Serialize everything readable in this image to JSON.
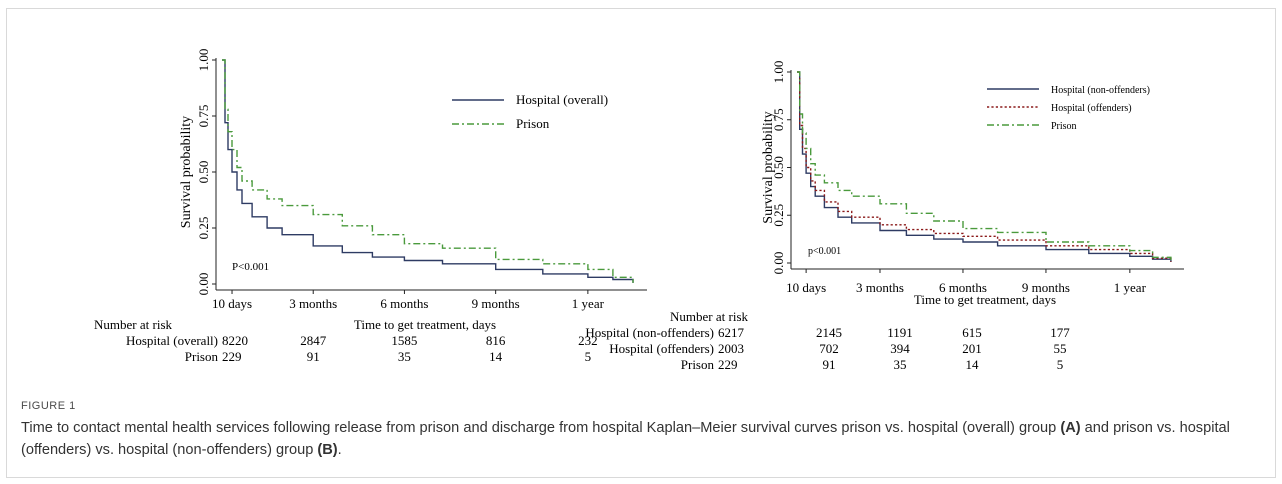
{
  "figure": {
    "label": "FIGURE 1",
    "caption_text": "Time to contact mental health services following release from prison and discharge from hospital Kaplan–Meier survival curves prison vs. hospital (overall) group ",
    "caption_a": "(A)",
    "caption_mid": " and prison vs. hospital (offenders) vs. hospital (non-offenders) group ",
    "caption_b": "(B)",
    "caption_end": "."
  },
  "chart_data": [
    {
      "type": "line",
      "panel": "A",
      "xlabel": "Time to get treatment, days",
      "ylabel": "Survival probability",
      "x_ticks": [
        "10 days",
        "3 months",
        "6 months",
        "9 months",
        "1 year"
      ],
      "x_tick_days": [
        10,
        91,
        182,
        273,
        365
      ],
      "xlim": [
        0,
        420
      ],
      "ylim": [
        0,
        1
      ],
      "y_ticks": [
        "0.00",
        "0.25",
        "0.50",
        "0.75",
        "1.00"
      ],
      "y_tick_values": [
        0,
        0.25,
        0.5,
        0.75,
        1
      ],
      "annotation": "P<0.001",
      "legend_position": "top-right",
      "series": [
        {
          "name": "Hospital (overall)",
          "color": "#2e3b63",
          "dash": "solid",
          "x": [
            0,
            3,
            6,
            10,
            15,
            20,
            30,
            45,
            60,
            91,
            120,
            150,
            182,
            220,
            273,
            320,
            365,
            390,
            410
          ],
          "y": [
            1.0,
            0.72,
            0.6,
            0.5,
            0.42,
            0.36,
            0.3,
            0.25,
            0.22,
            0.17,
            0.14,
            0.12,
            0.105,
            0.09,
            0.065,
            0.045,
            0.03,
            0.02,
            0.005
          ]
        },
        {
          "name": "Prison",
          "color": "#4a9a3c",
          "dash": "dashdot",
          "x": [
            0,
            3,
            6,
            10,
            15,
            20,
            30,
            45,
            60,
            91,
            120,
            150,
            182,
            220,
            273,
            320,
            365,
            390,
            410
          ],
          "y": [
            1.0,
            0.78,
            0.68,
            0.6,
            0.52,
            0.46,
            0.42,
            0.38,
            0.35,
            0.31,
            0.26,
            0.22,
            0.18,
            0.16,
            0.11,
            0.09,
            0.065,
            0.03,
            0.005
          ]
        }
      ],
      "risk_table": {
        "title": "Number at risk",
        "rows": [
          {
            "label": "Hospital (overall)",
            "values": [
              "8220",
              "2847",
              "1585",
              "816",
              "232"
            ]
          },
          {
            "label": "Prison",
            "values": [
              "229",
              "91",
              "35",
              "14",
              "5"
            ]
          }
        ]
      }
    },
    {
      "type": "line",
      "panel": "B",
      "xlabel": "Time to get treatment, days",
      "ylabel": "Survival probability",
      "x_ticks": [
        "10 days",
        "3 months",
        "6 months",
        "9 months",
        "1 year"
      ],
      "x_tick_days": [
        10,
        91,
        182,
        273,
        365
      ],
      "xlim": [
        0,
        420
      ],
      "ylim": [
        0,
        1
      ],
      "y_ticks": [
        "0.00",
        "0.25",
        "0.50",
        "0.75",
        "1.00"
      ],
      "y_tick_values": [
        0,
        0.25,
        0.5,
        0.75,
        1
      ],
      "annotation": "p<0.001",
      "legend_position": "top-right",
      "series": [
        {
          "name": "Hospital (non-offenders)",
          "color": "#2e3b63",
          "dash": "solid",
          "x": [
            0,
            3,
            6,
            10,
            15,
            20,
            30,
            45,
            60,
            91,
            120,
            150,
            182,
            220,
            273,
            320,
            365,
            390,
            410
          ],
          "y": [
            1.0,
            0.7,
            0.57,
            0.47,
            0.4,
            0.35,
            0.29,
            0.24,
            0.21,
            0.17,
            0.145,
            0.125,
            0.11,
            0.09,
            0.07,
            0.05,
            0.035,
            0.02,
            0.005
          ]
        },
        {
          "name": "Hospital (offenders)",
          "color": "#8b1a1a",
          "dash": "dotted",
          "x": [
            0,
            3,
            6,
            10,
            15,
            20,
            30,
            45,
            60,
            91,
            120,
            150,
            182,
            220,
            273,
            320,
            365,
            390,
            410
          ],
          "y": [
            1.0,
            0.72,
            0.6,
            0.5,
            0.43,
            0.38,
            0.32,
            0.27,
            0.24,
            0.2,
            0.175,
            0.155,
            0.14,
            0.12,
            0.09,
            0.07,
            0.05,
            0.025,
            0.005
          ]
        },
        {
          "name": "Prison",
          "color": "#4a9a3c",
          "dash": "dashdot",
          "x": [
            0,
            3,
            6,
            10,
            15,
            20,
            30,
            45,
            60,
            91,
            120,
            150,
            182,
            220,
            273,
            320,
            365,
            390,
            410
          ],
          "y": [
            1.0,
            0.78,
            0.68,
            0.6,
            0.52,
            0.46,
            0.42,
            0.38,
            0.35,
            0.31,
            0.26,
            0.22,
            0.18,
            0.16,
            0.11,
            0.09,
            0.065,
            0.03,
            0.005
          ]
        }
      ],
      "risk_table": {
        "title": "Number at risk",
        "rows": [
          {
            "label": "Hospital (non-offenders)",
            "values": [
              "6217",
              "2145",
              "1191",
              "615",
              "177"
            ]
          },
          {
            "label": "Hospital (offenders)",
            "values": [
              "2003",
              "702",
              "394",
              "201",
              "55"
            ]
          },
          {
            "label": "Prison",
            "values": [
              "229",
              "91",
              "35",
              "14",
              "5"
            ]
          }
        ]
      }
    }
  ]
}
